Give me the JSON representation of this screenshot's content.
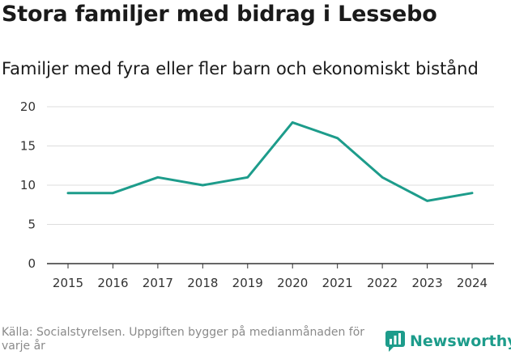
{
  "header": {
    "title": "Stora familjer med bidrag i Lessebo",
    "subtitle": "Familjer med fyra eller fler barn och ekonomiskt bistånd"
  },
  "footer": {
    "source": "Källa: Socialstyrelsen. Uppgiften bygger på medianmånaden för varje år",
    "brand": "Newsworthy"
  },
  "colors": {
    "line": "#1d9c8b",
    "grid": "#dddddd",
    "axis": "#333333",
    "brand": "#1d9c8b"
  },
  "chart_data": {
    "type": "line",
    "title": "Familjer med fyra eller fler barn och ekonomiskt bistånd",
    "xlabel": "",
    "ylabel": "",
    "categories": [
      "2015",
      "2016",
      "2017",
      "2018",
      "2019",
      "2020",
      "2021",
      "2022",
      "2023",
      "2024"
    ],
    "series": [
      {
        "name": "Familjer",
        "values": [
          9,
          9,
          11,
          10,
          11,
          18,
          16,
          11,
          8,
          9
        ]
      }
    ],
    "ylim": [
      0,
      20
    ],
    "yticks": [
      0,
      5,
      10,
      15,
      20
    ],
    "grid": true,
    "legend": "none"
  }
}
